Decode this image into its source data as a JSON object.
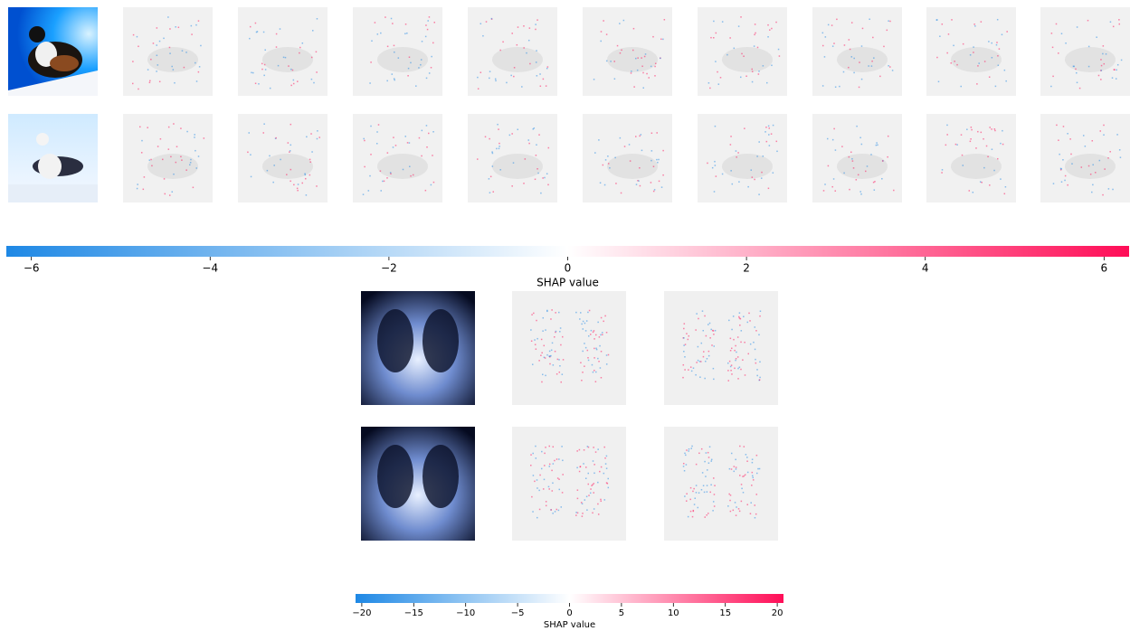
{
  "chart_data": [
    {
      "type": "colorbar",
      "xlabel": "SHAP value",
      "xlim": [
        -6.28,
        6.28
      ],
      "xticks": [
        {
          "value": -6,
          "label": "−6"
        },
        {
          "value": -4,
          "label": "−4"
        },
        {
          "value": -2,
          "label": "−2"
        },
        0,
        2,
        4,
        6
      ],
      "colors": [
        "#1e88e5",
        "#ffffff",
        "#ff0d57"
      ]
    },
    {
      "type": "colorbar",
      "xlabel": "SHAP value",
      "xlim": [
        -20.6,
        20.6
      ],
      "xticks": [
        {
          "value": -20,
          "label": "−20"
        },
        {
          "value": -15,
          "label": "−15"
        },
        {
          "value": -10,
          "label": "−10"
        },
        {
          "value": -5,
          "label": "−5"
        },
        0,
        5,
        10,
        15,
        20
      ],
      "colors": [
        "#1e88e5",
        "#ffffff",
        "#ff0d57"
      ]
    }
  ]
}
